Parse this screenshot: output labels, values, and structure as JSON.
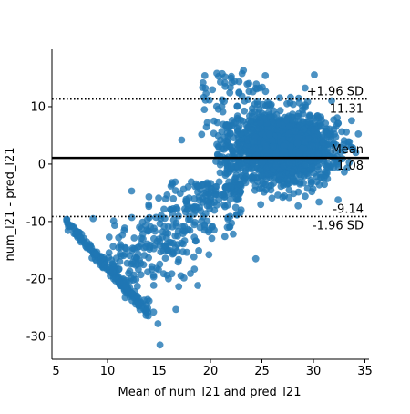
{
  "chart_data": {
    "type": "scatter",
    "title": "",
    "xlabel": "Mean of num_l21 and pred_l21",
    "ylabel": "num_l21 - pred_l21",
    "xlim": [
      4.6,
      35.4
    ],
    "ylim": [
      -34,
      20
    ],
    "x_ticks": [
      5,
      10,
      15,
      20,
      25,
      30,
      35
    ],
    "y_ticks": [
      -30,
      -20,
      -10,
      0,
      10
    ],
    "grid": false,
    "point_color": "#1f77b4",
    "mean_line": {
      "value": 1.08,
      "label": "Mean",
      "value_label": "1.08",
      "color": "#000000"
    },
    "upper_loa": {
      "value": 11.31,
      "label": "+1.96 SD",
      "value_label": "11.31",
      "color": "#000000"
    },
    "lower_loa": {
      "value": -9.14,
      "label": "-1.96 SD",
      "value_label": "-9.14",
      "color": "#000000"
    },
    "point_clusters": [
      {
        "region": "diagonal band",
        "x": [
          6,
          14
        ],
        "y": [
          -30,
          -14
        ],
        "density": "high"
      },
      {
        "region": "lower spread",
        "x": [
          10,
          23
        ],
        "y": [
          -31,
          -3
        ],
        "density": "medium"
      },
      {
        "region": "main cloud",
        "x": [
          20,
          34.5
        ],
        "y": [
          -7,
          15
        ],
        "density": "very high"
      },
      {
        "region": "upper tail",
        "x": [
          19,
          26
        ],
        "y": [
          5,
          17
        ],
        "density": "low"
      }
    ]
  }
}
